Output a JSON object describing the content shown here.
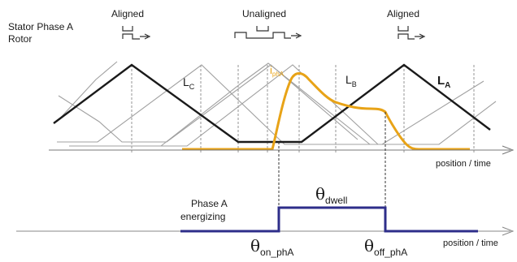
{
  "labels": {
    "stator_phase_a": "Stator Phase A",
    "rotor": "Rotor",
    "aligned_left": "Aligned",
    "unaligned": "Unaligned",
    "aligned_right": "Aligned",
    "inductance_c": "L",
    "inductance_c_sub": "C",
    "inductance_b": "L",
    "inductance_b_sub": "B",
    "inductance_a": "L",
    "inductance_a_sub": "A",
    "current": "i",
    "current_sub": "phA",
    "axis_top": "position / time",
    "axis_bottom": "position / time",
    "energizing_line1": "Phase A",
    "energizing_line2": "energizing",
    "theta_dwell": "θ",
    "theta_dwell_sub": "dwell",
    "theta_on": "θ",
    "theta_on_sub": "on_phA",
    "theta_off": "θ",
    "theta_off_sub": "off_phA"
  },
  "colors": {
    "current": "#e8a317",
    "energizing": "#2e2e8a",
    "inductance_a": "#1a1a1a",
    "inductance_other": "#9a9a9a",
    "axis": "#555555"
  }
}
